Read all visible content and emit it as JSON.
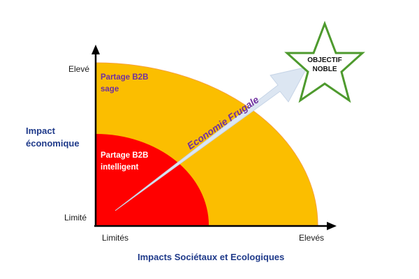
{
  "y_axis": {
    "title_line1": "Impact",
    "title_line2": "économique",
    "high_label": "Elevé",
    "low_label": "Limité"
  },
  "x_axis": {
    "title": "Impacts Sociétaux et Ecologiques",
    "low_label": "Limités",
    "high_label": "Elevés"
  },
  "zones": {
    "outer": {
      "line1": "Partage B2B",
      "line2": "sage",
      "fill_color": "#FBBE00",
      "border_color": "#F6A13A",
      "text_color": "#7030A0"
    },
    "inner": {
      "line1": "Partage B2B",
      "line2": "intelligent",
      "fill_color": "#FF0000",
      "text_color": "#ffffff"
    }
  },
  "arrow": {
    "label": "Economie Frugale",
    "fill_color": "#DCE6F2",
    "text_color": "#7030A0"
  },
  "goal": {
    "line1": "OBJECTIF",
    "line2": "NOBLE",
    "stroke_color": "#4E9A2E"
  },
  "axis_color": "#000000",
  "title_color": "#1F3A8A"
}
